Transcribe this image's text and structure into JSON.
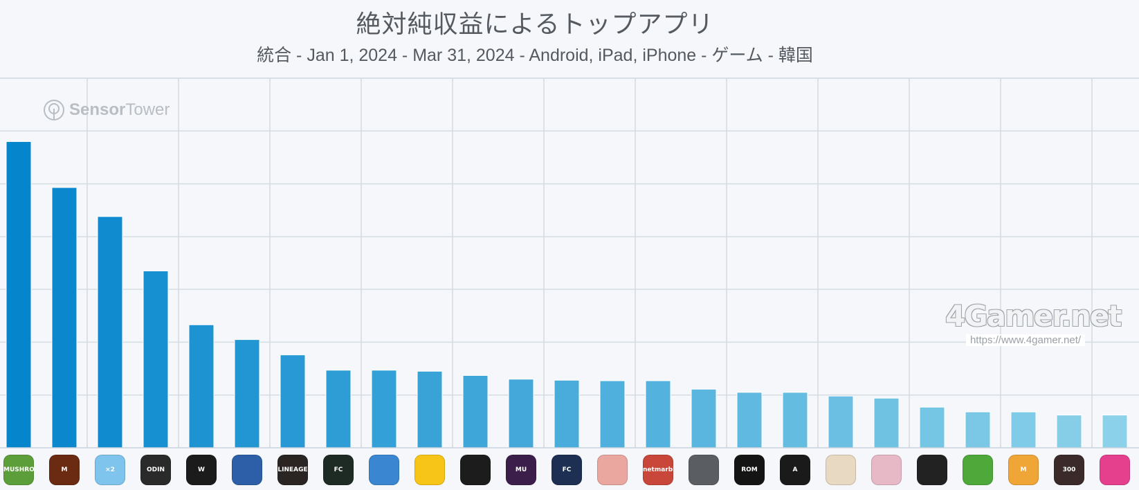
{
  "header": {
    "title": "絶対純収益によるトップアプリ",
    "subtitle": "統合 - Jan 1, 2024 - Mar 31, 2024 - Android, iPad, iPhone - ゲーム - 韓国"
  },
  "watermarks": {
    "sensor_tower": {
      "prefix": "Sensor",
      "suffix": "Tower"
    },
    "fourgamer": {
      "logo": "4Gamer.net",
      "url": "https://www.4gamer.net/"
    }
  },
  "chart_data": {
    "type": "bar",
    "title": "絶対純収益によるトップアプリ",
    "subtitle": "統合 - Jan 1, 2024 - Mar 31, 2024 - Android, iPad, iPhone - ゲーム - 韓国",
    "xlabel": "",
    "ylabel": "",
    "ylim": [
      0,
      7
    ],
    "grid": true,
    "legend": "none",
    "values": [
      5.8,
      4.93,
      4.38,
      3.35,
      2.33,
      2.05,
      1.76,
      1.47,
      1.47,
      1.45,
      1.37,
      1.3,
      1.28,
      1.27,
      1.27,
      1.11,
      1.05,
      1.05,
      0.98,
      0.94,
      0.77,
      0.68,
      0.68,
      0.62,
      0.62
    ],
    "bar_colors": [
      "#0585cc",
      "#0b88cd",
      "#118bcf",
      "#1790d1",
      "#1d93d2",
      "#2296d3",
      "#2899d4",
      "#2e9cd5",
      "#33a0d7",
      "#39a3d8",
      "#3ea6d9",
      "#44a9da",
      "#49acdb",
      "#4fb0dd",
      "#54b3de",
      "#5ab6df",
      "#5fb9e0",
      "#65bce1",
      "#6abfe2",
      "#70c2e3",
      "#75c5e4",
      "#7bc8e6",
      "#80cbe7",
      "#86cee8",
      "#8bd1e9"
    ]
  },
  "apps": [
    {
      "icon": "legend-of-mushroom-icon",
      "label": "MUSHROOM",
      "color": "#5c9e3a"
    },
    {
      "icon": "lineage-m-icon",
      "label": "M",
      "color": "#6b2a12"
    },
    {
      "icon": "puzzle-game-icon",
      "label": "×2",
      "color": "#7fc4ec"
    },
    {
      "icon": "odin-icon",
      "label": "ODIN",
      "color": "#2a2a2a"
    },
    {
      "icon": "lineage-w-icon",
      "label": "W",
      "color": "#1b1b1b"
    },
    {
      "icon": "globe-game-icon",
      "label": "",
      "color": "#2c5fa8"
    },
    {
      "icon": "lineage-2m-icon",
      "label": "LINEAGE",
      "color": "#2a2522"
    },
    {
      "icon": "ea-fc-mobile-icon",
      "label": "FC",
      "color": "#1e2a24"
    },
    {
      "icon": "royal-match-icon",
      "label": "",
      "color": "#3a86d0"
    },
    {
      "icon": "brawl-stars-icon",
      "label": "",
      "color": "#f7c517"
    },
    {
      "icon": "raven-icon",
      "label": "",
      "color": "#1c1c1c"
    },
    {
      "icon": "mu-monarch-icon",
      "label": "MU",
      "color": "#3b1f4a"
    },
    {
      "icon": "fc-online-icon",
      "label": "FC",
      "color": "#1d2f52"
    },
    {
      "icon": "anime-girl-game-icon",
      "label": "",
      "color": "#e9a7a0"
    },
    {
      "icon": "netmarble-game-icon",
      "label": "netmarble",
      "color": "#c8463a"
    },
    {
      "icon": "roblox-icon",
      "label": "",
      "color": "#5a5d62"
    },
    {
      "icon": "rom-icon",
      "label": "ROM",
      "color": "#141414"
    },
    {
      "icon": "a-logo-game-icon",
      "label": "A",
      "color": "#1a1a1a"
    },
    {
      "icon": "genshin-impact-icon",
      "label": "",
      "color": "#e8d9c2"
    },
    {
      "icon": "honkai-star-rail-icon",
      "label": "",
      "color": "#e7b9c6"
    },
    {
      "icon": "korean-title-game-icon",
      "label": "",
      "color": "#222222"
    },
    {
      "icon": "green-game-icon",
      "label": "",
      "color": "#4fa83a"
    },
    {
      "icon": "maplestory-m-icon",
      "label": "M",
      "color": "#f0a537"
    },
    {
      "icon": "300-days-icon",
      "label": "300",
      "color": "#3a2a2a"
    },
    {
      "icon": "pink-game-icon",
      "label": "",
      "color": "#e4408e"
    }
  ]
}
